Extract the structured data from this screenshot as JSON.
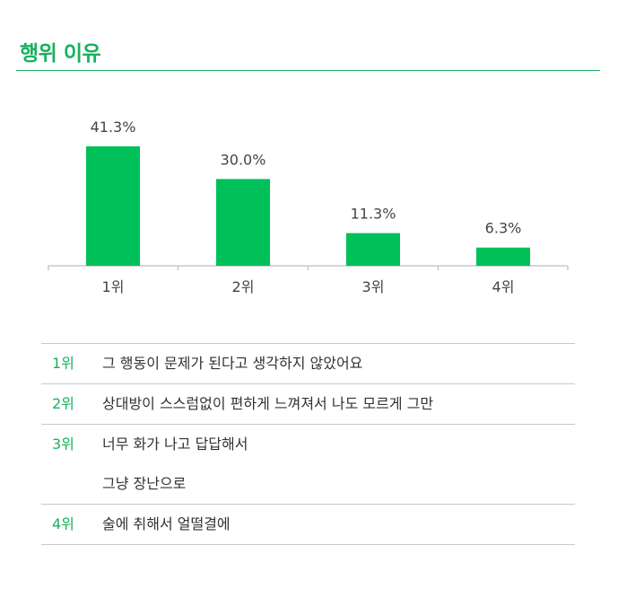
{
  "header": {
    "title": "행위 이유"
  },
  "chart_data": {
    "type": "bar",
    "categories": [
      "1위",
      "2위",
      "3위",
      "4위"
    ],
    "values": [
      41.3,
      30.0,
      11.3,
      6.3
    ],
    "value_labels": [
      "41.3%",
      "30.0%",
      "11.3%",
      "6.3%"
    ],
    "unit": "%",
    "title": "행위 이유",
    "xlabel": "",
    "ylabel": "",
    "ylim": [
      0,
      41.3
    ],
    "grid": false,
    "legend": "none",
    "colors": {
      "bar": "#00c05a",
      "axis": "#c8c8c8",
      "value_label": "#444444",
      "tick_label": "#444444"
    }
  },
  "ranking": [
    {
      "rank": "1위",
      "lines": [
        "그 행동이 문제가 된다고 생각하지 않았어요"
      ]
    },
    {
      "rank": "2위",
      "lines": [
        "상대방이 스스럼없이 편하게 느껴져서 나도 모르게 그만"
      ]
    },
    {
      "rank": "3위",
      "lines": [
        "너무 화가 나고 답답해서",
        "그냥 장난으로"
      ]
    },
    {
      "rank": "4위",
      "lines": [
        "술에 취해서 얼떨결에"
      ]
    }
  ],
  "colors": {
    "accent": "#17b25e",
    "divider": "#c8c8c8",
    "text": "#333333"
  }
}
